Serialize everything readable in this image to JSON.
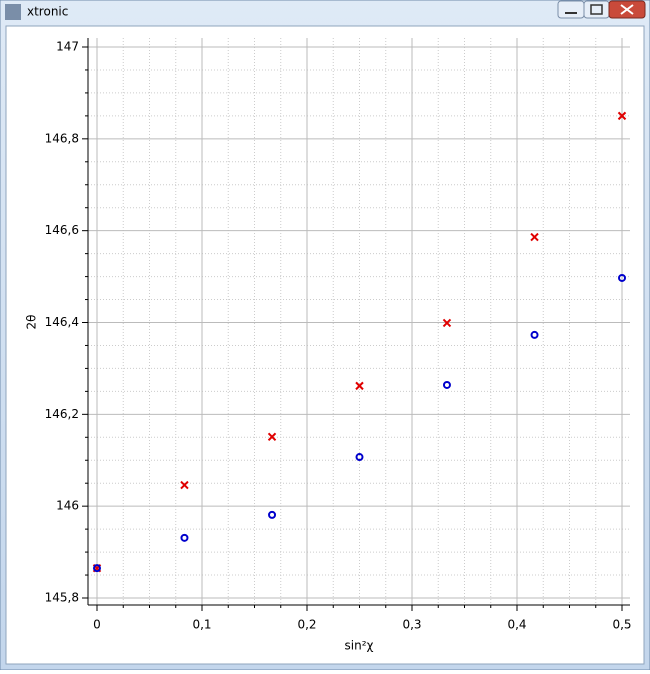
{
  "window": {
    "title": "xtronic"
  },
  "chart_data": {
    "type": "line",
    "xlabel": "sin²χ",
    "ylabel": "2θ",
    "x": [
      0,
      0.0833,
      0.1667,
      0.25,
      0.3333,
      0.4167,
      0.5
    ],
    "series": [
      {
        "color": "#e00000",
        "marker": "x",
        "values": [
          145.865,
          146.046,
          146.151,
          146.262,
          146.399,
          146.586,
          146.85
        ]
      },
      {
        "color": "#0000cc",
        "marker": "o",
        "values": [
          145.865,
          145.931,
          145.981,
          146.107,
          146.264,
          146.373,
          146.497
        ]
      }
    ],
    "xlim": [
      0,
      0.5
    ],
    "xticks": [
      0,
      {
        "value": 0.1,
        "label": "0,1"
      },
      {
        "value": 0.2,
        "label": "0,2"
      },
      {
        "value": 0.3,
        "label": "0,3"
      },
      {
        "value": 0.4,
        "label": "0,4"
      },
      {
        "value": 0.5,
        "label": "0,5"
      }
    ],
    "ylim": [
      145.8,
      147
    ],
    "yticks": [
      {
        "value": 145.8,
        "label": "145,8"
      },
      146,
      {
        "value": 146.2,
        "label": "146,2"
      },
      {
        "value": 146.4,
        "label": "146,4"
      },
      {
        "value": 146.6,
        "label": "146,6"
      },
      {
        "value": 146.8,
        "label": "146,8"
      },
      147
    ],
    "grid": true,
    "minor_grid": true
  }
}
